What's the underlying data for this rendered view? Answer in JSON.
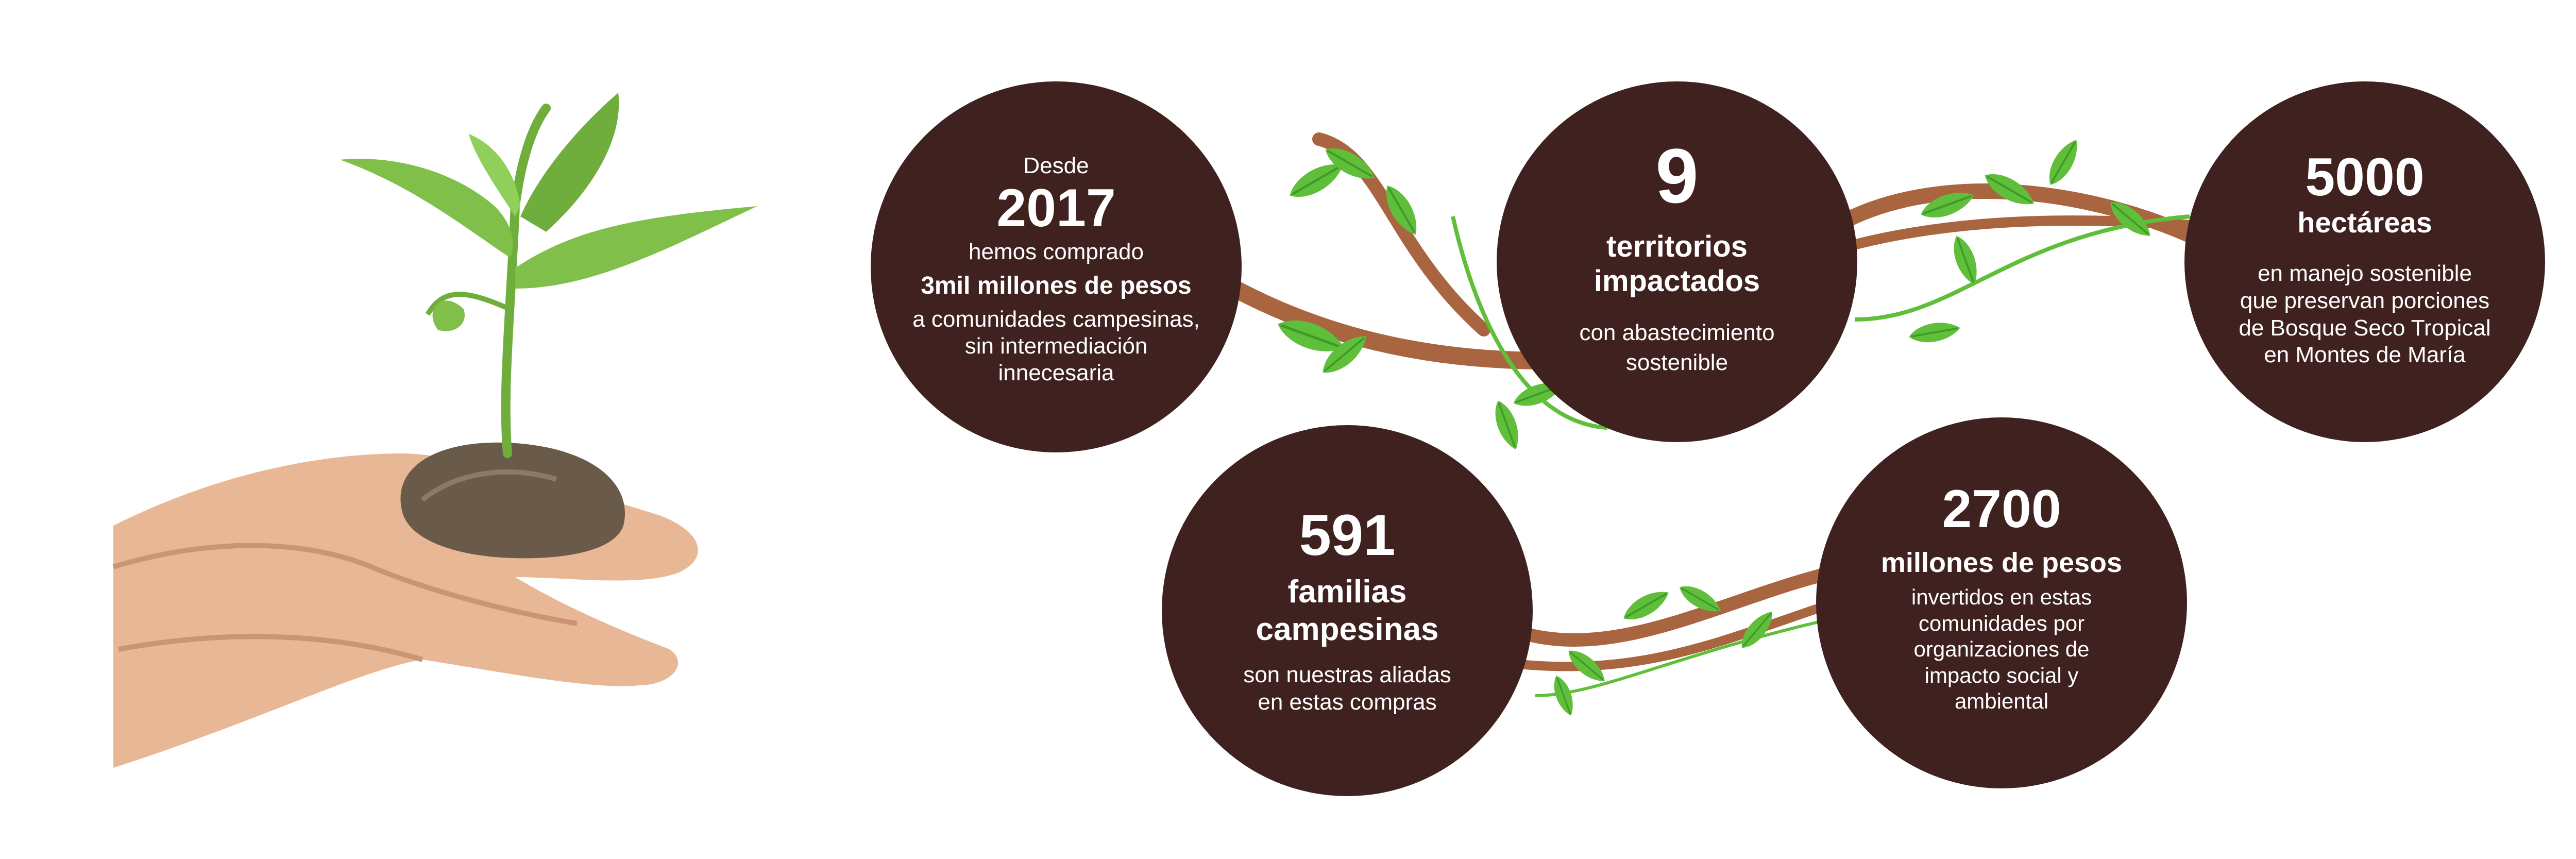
{
  "stats": [
    {
      "pre": "Desde",
      "number": "2017",
      "line1": "hemos comprado",
      "highlight": "3mil millones de pesos",
      "desc": [
        "a comunidades campesinas,",
        "sin intermediación",
        "innecesaria"
      ]
    },
    {
      "number": "9",
      "label": [
        "territorios",
        "impactados"
      ],
      "desc": [
        "con abastecimiento",
        "sostenible"
      ]
    },
    {
      "number": "5000",
      "label": "hectáreas",
      "desc": [
        "en manejo sostenible",
        "que preservan porciones",
        "de Bosque Seco Tropical",
        "en Montes de María"
      ]
    },
    {
      "number": "591",
      "label": [
        "familias",
        "campesinas"
      ],
      "desc": [
        "son nuestras aliadas",
        "en estas compras"
      ]
    },
    {
      "number": "2700",
      "label": "millones de pesos",
      "desc": [
        "invertidos en estas",
        "comunidades por",
        "organizaciones de",
        "impacto social y",
        "ambiental"
      ]
    }
  ],
  "colors": {
    "circle": "#3f2220",
    "text": "#ffffff",
    "vine_brown": "#a8653f",
    "leaf_green": "#5fbf3a",
    "leaf_dark": "#3f9a2a",
    "skin": "#e8b896",
    "soil": "#6a5a4a"
  },
  "illustration": {
    "left": "hands-holding-seedling-icon",
    "decor": "vine-with-leaves-icon"
  }
}
